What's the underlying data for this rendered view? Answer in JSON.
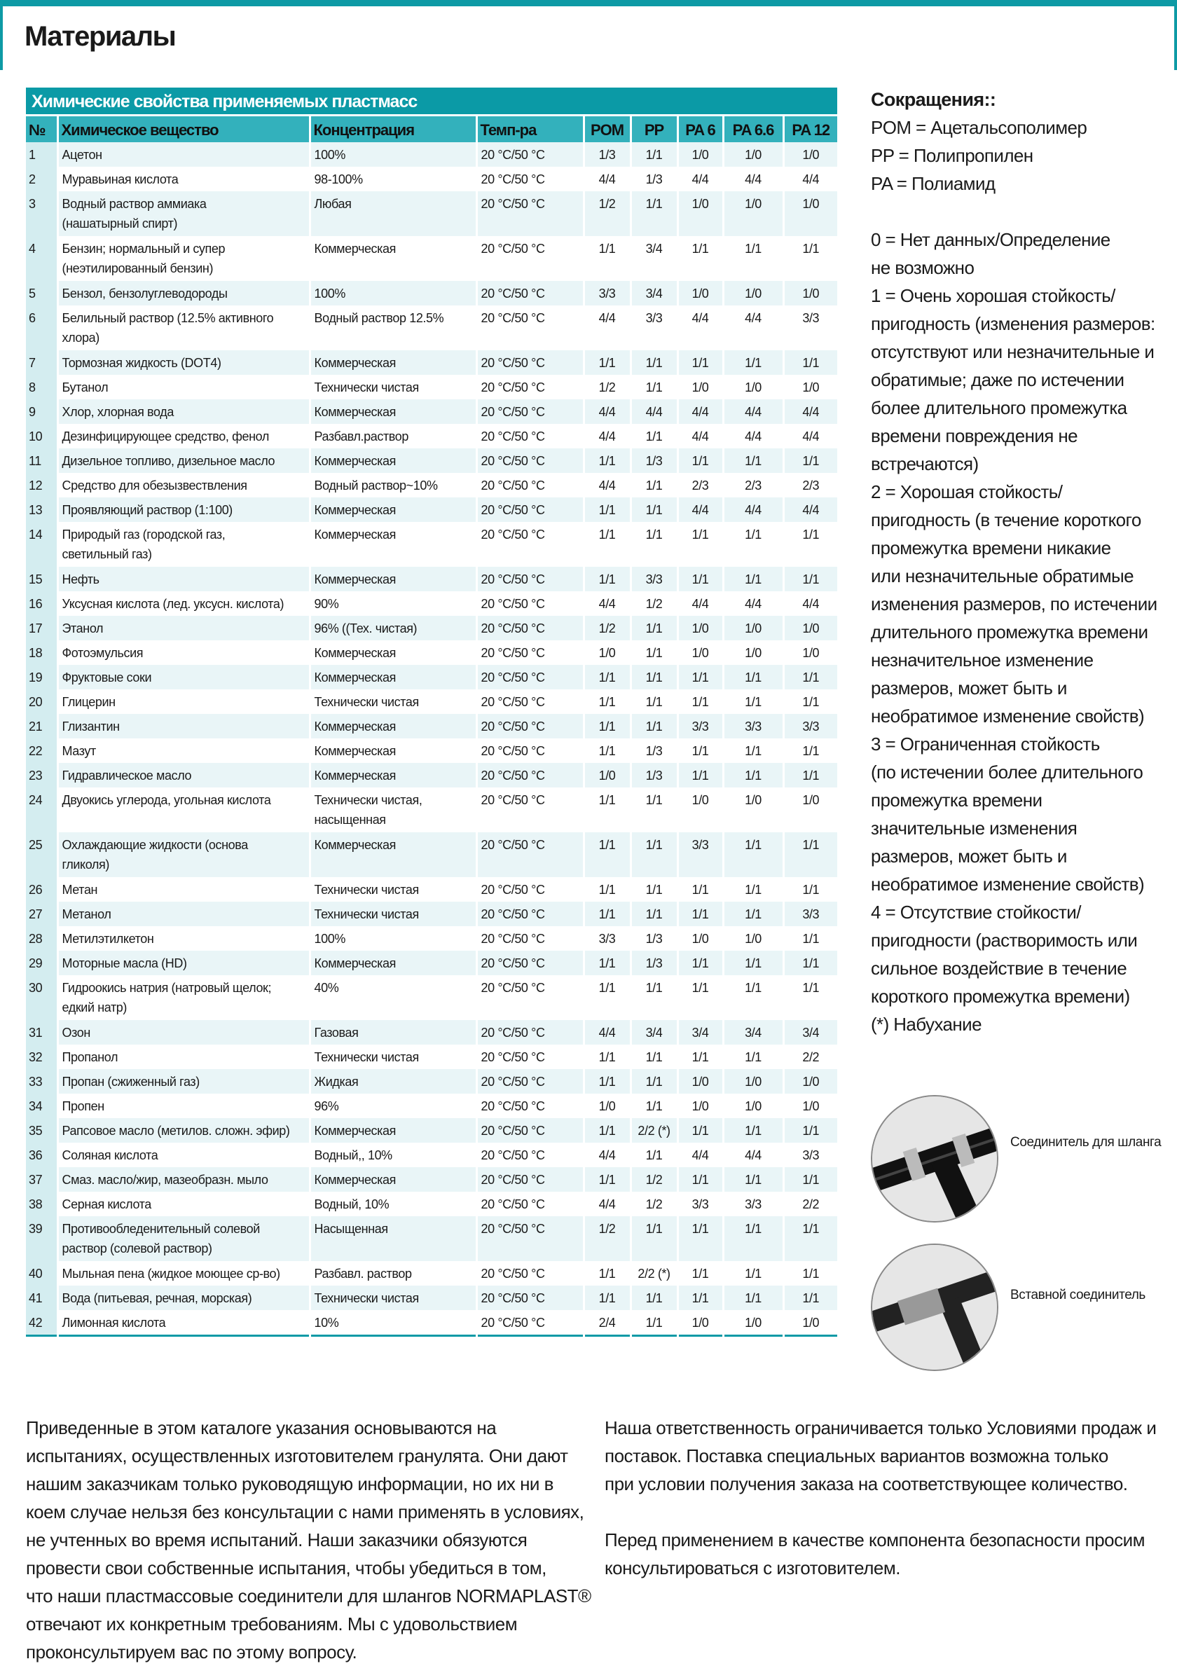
{
  "page": {
    "title": "Материалы"
  },
  "colors": {
    "accent": "#0b9aa6",
    "header_row": "#33b1bc",
    "row_tint": "#e9f5f7",
    "number_column": "#d4edf0"
  },
  "table": {
    "title": "Химические свойства применяемых пластмасс",
    "headers": [
      "№",
      "Химическое вещество",
      "Концентрация",
      "Темп-ра",
      "POM",
      "PP",
      "PA 6",
      "PA 6.6",
      "PA 12"
    ],
    "rows": [
      [
        "1",
        "Ацетон",
        "100%",
        "20 °C/50 °C",
        "1/3",
        "1/1",
        "1/0",
        "1/0",
        "1/0"
      ],
      [
        "2",
        "Муравьиная кислота",
        "98-100%",
        "20 °C/50 °C",
        "4/4",
        "1/3",
        "4/4",
        "4/4",
        "4/4"
      ],
      [
        "3",
        "Водный раствор аммиака\n(нашатырный спирт)",
        "Любая",
        "20 °C/50 °C",
        "1/2",
        "1/1",
        "1/0",
        "1/0",
        "1/0"
      ],
      [
        "4",
        "Бензин; нормальный и супер\n(неэтилированный бензин)",
        "Коммерческая",
        "20 °C/50 °C",
        "1/1",
        "3/4",
        "1/1",
        "1/1",
        "1/1"
      ],
      [
        "5",
        "Бензол, бензолуглеводороды",
        "100%",
        "20 °C/50 °C",
        "3/3",
        "3/4",
        "1/0",
        "1/0",
        "1/0"
      ],
      [
        "6",
        "Белильный раствор (12.5% активного\nхлора)",
        "Водный раствор 12.5%",
        "20 °C/50 °C",
        "4/4",
        "3/3",
        "4/4",
        "4/4",
        "3/3"
      ],
      [
        "7",
        "Тормозная жидкость (DOT4)",
        "Коммерческая",
        "20 °C/50 °C",
        "1/1",
        "1/1",
        "1/1",
        "1/1",
        "1/1"
      ],
      [
        "8",
        "Бутанол",
        "Технически чистая",
        "20 °C/50 °C",
        "1/2",
        "1/1",
        "1/0",
        "1/0",
        "1/0"
      ],
      [
        "9",
        "Хлор, хлорная вода",
        "Коммерческая",
        "20 °C/50 °C",
        "4/4",
        "4/4",
        "4/4",
        "4/4",
        "4/4"
      ],
      [
        "10",
        "Дезинфицирующее средство, фенол",
        "Разбавл.раствор",
        "20 °C/50 °C",
        "4/4",
        "1/1",
        "4/4",
        "4/4",
        "4/4"
      ],
      [
        "11",
        "Дизельное топливо, дизельное масло",
        "Коммерческая",
        "20 °C/50 °C",
        "1/1",
        "1/3",
        "1/1",
        "1/1",
        "1/1"
      ],
      [
        "12",
        "Средство для обезызвествления",
        "Водный раствор~10%",
        "20 °C/50 °C",
        "4/4",
        "1/1",
        "2/3",
        "2/3",
        "2/3"
      ],
      [
        "13",
        "Проявляющий раствор (1:100)",
        "Коммерческая",
        "20 °C/50 °C",
        "1/1",
        "1/1",
        "4/4",
        "4/4",
        "4/4"
      ],
      [
        "14",
        "Природый газ (городской газ,\nсветильный газ)",
        "Коммерческая",
        "20 °C/50 °C",
        "1/1",
        "1/1",
        "1/1",
        "1/1",
        "1/1"
      ],
      [
        "15",
        "Нефть",
        "Коммерческая",
        "20 °C/50 °C",
        "1/1",
        "3/3",
        "1/1",
        "1/1",
        "1/1"
      ],
      [
        "16",
        "Уксусная кислота (лед. уксусн. кислота)",
        "90%",
        "20 °C/50 °C",
        "4/4",
        "1/2",
        "4/4",
        "4/4",
        "4/4"
      ],
      [
        "17",
        "Этанол",
        "96% ((Тех. чистая)",
        "20 °C/50 °C",
        "1/2",
        "1/1",
        "1/0",
        "1/0",
        "1/0"
      ],
      [
        "18",
        "Фотоэмульсия",
        "Коммерческая",
        "20 °C/50 °C",
        "1/0",
        "1/1",
        "1/0",
        "1/0",
        "1/0"
      ],
      [
        "19",
        "Фруктовые соки",
        "Коммерческая",
        "20 °C/50 °C",
        "1/1",
        "1/1",
        "1/1",
        "1/1",
        "1/1"
      ],
      [
        "20",
        "Глицерин",
        "Технически чистая",
        "20 °C/50 °C",
        "1/1",
        "1/1",
        "1/1",
        "1/1",
        "1/1"
      ],
      [
        "21",
        "Глизантин",
        "Коммерческая",
        "20 °C/50 °C",
        "1/1",
        "1/1",
        "3/3",
        "3/3",
        "3/3"
      ],
      [
        "22",
        "Мазут",
        "Коммерческая",
        "20 °C/50 °C",
        "1/1",
        "1/3",
        "1/1",
        "1/1",
        "1/1"
      ],
      [
        "23",
        "Гидравлическое масло",
        "Коммерческая",
        "20 °C/50 °C",
        "1/0",
        "1/3",
        "1/1",
        "1/1",
        "1/1"
      ],
      [
        "24",
        "Двуокись углерода, угольная кислота",
        "Технически чистая,\nнасыщенная",
        "20 °C/50 °C",
        "1/1",
        "1/1",
        "1/0",
        "1/0",
        "1/0"
      ],
      [
        "25",
        "Охлаждающие жидкости (основа\nгликоля)",
        "Коммерческая",
        "20 °C/50 °C",
        "1/1",
        "1/1",
        "3/3",
        "1/1",
        "1/1"
      ],
      [
        "26",
        "Метан",
        "Технически чистая",
        "20 °C/50 °C",
        "1/1",
        "1/1",
        "1/1",
        "1/1",
        "1/1"
      ],
      [
        "27",
        "Метанол",
        "Технически чистая",
        "20 °C/50 °C",
        "1/1",
        "1/1",
        "1/1",
        "1/1",
        "3/3"
      ],
      [
        "28",
        "Метилэтилкетон",
        "100%",
        "20 °C/50 °C",
        "3/3",
        "1/3",
        "1/0",
        "1/0",
        "1/1"
      ],
      [
        "29",
        "Моторные масла (HD)",
        "Коммерческая",
        "20 °C/50 °C",
        "1/1",
        "1/3",
        "1/1",
        "1/1",
        "1/1"
      ],
      [
        "30",
        "Гидроокись натрия (натровый щелок;\nедкий натр)",
        "40%",
        "20 °C/50 °C",
        "1/1",
        "1/1",
        "1/1",
        "1/1",
        "1/1"
      ],
      [
        "31",
        "Озон",
        "Газовая",
        "20 °C/50 °C",
        "4/4",
        "3/4",
        "3/4",
        "3/4",
        "3/4"
      ],
      [
        "32",
        "Пропанол",
        "Технически чистая",
        "20 °C/50 °C",
        "1/1",
        "1/1",
        "1/1",
        "1/1",
        "2/2"
      ],
      [
        "33",
        "Пропан (сжиженный газ)",
        "Жидкая",
        "20 °C/50 °C",
        "1/1",
        "1/1",
        "1/0",
        "1/0",
        "1/0"
      ],
      [
        "34",
        "Пропен",
        "96%",
        "20 °C/50 °C",
        "1/0",
        "1/1",
        "1/0",
        "1/0",
        "1/0"
      ],
      [
        "35",
        "Рапсовое масло (метилов. сложн. эфир)",
        "Коммерческая",
        "20 °C/50 °C",
        "1/1",
        "2/2 (*)",
        "1/1",
        "1/1",
        "1/1"
      ],
      [
        "36",
        "Соляная кислота",
        "Водный,, 10%",
        "20 °C/50 °C",
        "4/4",
        "1/1",
        "4/4",
        "4/4",
        "3/3"
      ],
      [
        "37",
        "Смаз. масло/жир, мазеобразн. мыло",
        "Коммерческая",
        "20 °C/50 °C",
        "1/1",
        "1/2",
        "1/1",
        "1/1",
        "1/1"
      ],
      [
        "38",
        "Серная кислота",
        "Водный, 10%",
        "20 °C/50 °C",
        "4/4",
        "1/2",
        "3/3",
        "3/3",
        "2/2"
      ],
      [
        "39",
        "Противообледенительный солевой\nраствор (солевой раствор)",
        "Насыщенная",
        "20 °C/50 °C",
        "1/2",
        "1/1",
        "1/1",
        "1/1",
        "1/1"
      ],
      [
        "40",
        "Мыльная пена (жидкое моющее ср-во)",
        "Разбавл. раствор",
        "20 °C/50 °C",
        "1/1",
        "2/2 (*)",
        "1/1",
        "1/1",
        "1/1"
      ],
      [
        "41",
        "Вода (питьевая, речная, морская)",
        "Технически чистая",
        "20 °C/50 °C",
        "1/1",
        "1/1",
        "1/1",
        "1/1",
        "1/1"
      ],
      [
        "42",
        "Лимонная кислота",
        "10%",
        "20 °C/50 °C",
        "2/4",
        "1/1",
        "1/0",
        "1/0",
        "1/0"
      ]
    ]
  },
  "legend": {
    "heading": "Сокращения::",
    "abbreviations": [
      "POM = Ацетальсополимер",
      "PP = Полипропилен",
      "PA = Полиамид"
    ],
    "ratings": [
      "0 = Нет данных/Определение\nне возможно",
      "1 = Очень хорошая стойкость/\nпригодность (изменения размеров:\nотсутствуют или незначительные и\nобратимые; даже по истечении\nболее длительного промежутка\nвремени повреждения не\nвстречаются)",
      "2 = Хорошая стойкость/\nпригодность (в течение короткого\nпромежутка времени никакие\nили незначительные обратимые\nизменения размеров, по истечении\nдлительного промежутка времени\nнезначительное изменение\nразмеров, может быть и\nнеобратимое изменение свойств)",
      "3 = Ограниченная стойкость\n(по истечении более длительного\nпромежутка времени\nзначительные изменения\nразмеров, может быть и\nнеобратимое изменение свойств)",
      "4 = Отсутствие стойкости/\nпригодности (растворимость или\nсильное воздействие в течение\nкороткого промежутка времени)",
      "(*) Набухание"
    ]
  },
  "images": [
    {
      "label": "Соединитель для шланга"
    },
    {
      "label": "Вставной соединитель"
    }
  ],
  "footer": {
    "left": "Приведенные в этом каталоге указания основываются на\nиспытаниях, осуществленных изготовителем гранулята. Они дают\nнашим заказчикам только руководящую информации, но их ни в\nкоем случае нельзя без консультации с нами применять в условиях,\nне учтенных во время испытаний.  Наши заказчики обязуются\nпровести свои собственные испытания, чтобы убедиться в том,\nчто наши пластмассовые соединители для шлангов NORMAPLAST®\nотвечают их конкретным требованиям.  Мы с удовольствием\nпроконсультируем вас по этому вопросу.",
    "right_1": "Наша ответственность ограничивается только Условиями продаж и\nпоставок. Поставка специальных вариантов возможна только\nпри условии получения заказа на соответствующее количество.",
    "right_2": "Перед применением в качестве компонента безопасности просим\nконсультироваться с изготовителем."
  }
}
